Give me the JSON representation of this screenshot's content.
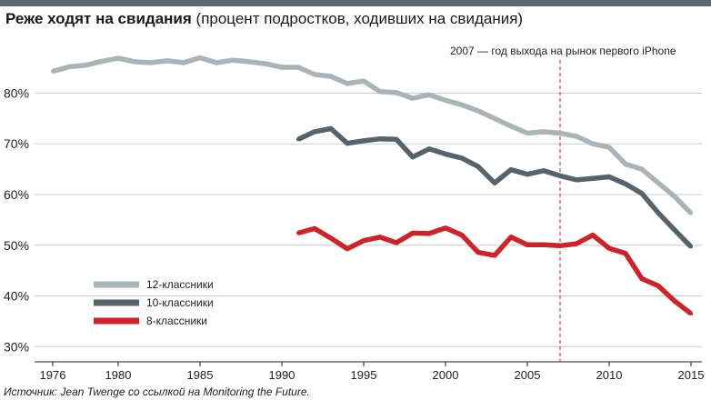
{
  "header": {
    "title": "Реже ходят на свидания",
    "subtitle": "(процент подростков, ходивших на свидания)"
  },
  "annotation": "2007 — год выхода на рынок первого iPhone",
  "source": "Источник: Jean Twenge со ссылкой на Monitoring the Future.",
  "chart_data": {
    "type": "line",
    "title": "Реже ходят на свидания",
    "subtitle": "(процент подростков, ходивших на свидания)",
    "xlim": [
      1976,
      2015
    ],
    "ylim": [
      27,
      93
    ],
    "x_ticks": [
      1976,
      1980,
      1985,
      1990,
      1995,
      2000,
      2005,
      2010,
      2015
    ],
    "y_ticks": [
      30,
      40,
      50,
      60,
      70,
      80
    ],
    "y_tick_labels": [
      "30%",
      "40%",
      "50%",
      "60%",
      "70%",
      "80%"
    ],
    "grid": "horizontal",
    "legend_position": "bottom-left",
    "vline": {
      "x": 2007,
      "style": "dashed",
      "color": "#c0262d",
      "label": "2007 — год выхода на рынок первого iPhone"
    },
    "series": [
      {
        "name": "12-классники",
        "color": "#a9b3b8",
        "x": [
          1976,
          1977,
          1978,
          1979,
          1980,
          1981,
          1982,
          1983,
          1984,
          1985,
          1986,
          1987,
          1988,
          1989,
          1990,
          1991,
          1992,
          1993,
          1994,
          1995,
          1996,
          1997,
          1998,
          1999,
          2000,
          2001,
          2002,
          2003,
          2004,
          2005,
          2006,
          2007,
          2008,
          2009,
          2010,
          2011,
          2012,
          2013,
          2014,
          2015
        ],
        "values": [
          84.3,
          85.2,
          85.5,
          86.3,
          86.9,
          86.2,
          86.0,
          86.4,
          86.0,
          87.0,
          86.0,
          86.5,
          86.2,
          85.8,
          85.1,
          85.1,
          83.7,
          83.3,
          81.9,
          82.4,
          80.3,
          80.1,
          79.0,
          79.7,
          78.6,
          77.7,
          76.5,
          75.0,
          73.5,
          72.1,
          72.4,
          72.1,
          71.5,
          70.0,
          69.3,
          66.0,
          65.0,
          62.3,
          59.6,
          56.3
        ]
      },
      {
        "name": "10-классники",
        "color": "#56636a",
        "x": [
          1991,
          1992,
          1993,
          1994,
          1995,
          1996,
          1997,
          1998,
          1999,
          2000,
          2001,
          2002,
          2003,
          2004,
          2005,
          2006,
          2007,
          2008,
          2009,
          2010,
          2011,
          2012,
          2013,
          2014,
          2015
        ],
        "values": [
          70.9,
          72.4,
          73.0,
          70.1,
          70.6,
          71.0,
          70.9,
          67.4,
          69.0,
          68.0,
          67.2,
          65.5,
          62.3,
          64.9,
          64.0,
          64.7,
          63.7,
          62.9,
          63.2,
          63.5,
          62.1,
          60.2,
          56.4,
          53.0,
          49.7
        ]
      },
      {
        "name": "8-классники",
        "color": "#c8262c",
        "x": [
          1991,
          1992,
          1993,
          1994,
          1995,
          1996,
          1997,
          1998,
          1999,
          2000,
          2001,
          2002,
          2003,
          2004,
          2005,
          2006,
          2007,
          2008,
          2009,
          2010,
          2011,
          2012,
          2013,
          2014,
          2015
        ],
        "values": [
          52.4,
          53.3,
          51.4,
          49.3,
          50.9,
          51.6,
          50.5,
          52.4,
          52.3,
          53.4,
          52.0,
          48.6,
          48.0,
          51.6,
          50.1,
          50.1,
          49.9,
          50.3,
          52.0,
          49.4,
          48.4,
          43.4,
          42.0,
          39.0,
          36.5
        ]
      }
    ]
  }
}
